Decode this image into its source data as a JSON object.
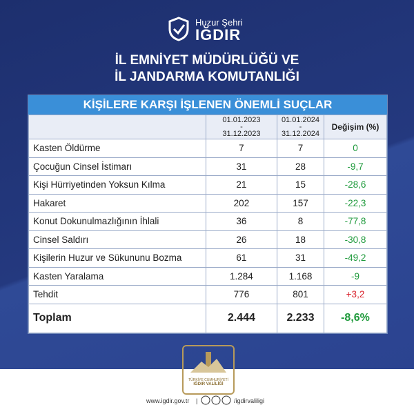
{
  "header": {
    "tagline": "Huzur Şehri",
    "city": "IĞDIR",
    "title_lines": [
      "İL EMNİYET MÜDÜRLÜĞÜ VE",
      "İL JANDARMA KOMUTANLIĞI"
    ]
  },
  "table": {
    "title": "KİŞİLERE KARŞI İŞLENEN ÖNEMLİ SUÇLAR",
    "columns": [
      "",
      "01.01.2023\n-\n31.12.2023",
      "01.01.2024\n-\n31.12.2024",
      "Değişim (%)"
    ],
    "rows": [
      [
        "Kasten Öldürme",
        "7",
        "7",
        "0"
      ],
      [
        "Çocuğun Cinsel İstimarı",
        "31",
        "28",
        "-9,7"
      ],
      [
        "Kişi Hürriyetinden Yoksun Kılma",
        "21",
        "15",
        "-28,6"
      ],
      [
        "Hakaret",
        "202",
        "157",
        "-22,3"
      ],
      [
        "Konut Dokunulmazlığının İhlali",
        "36",
        "8",
        "-77,8"
      ],
      [
        "Cinsel Saldırı",
        "26",
        "18",
        "-30,8"
      ],
      [
        "Kişilerin Huzur ve Sükununu Bozma",
        "61",
        "31",
        "-49,2"
      ],
      [
        "Kasten Yaralama",
        "1.284",
        "1.168",
        "-9"
      ],
      [
        "Tehdit",
        "776",
        "801",
        "+3,2"
      ]
    ],
    "total": [
      "Toplam",
      "2.444",
      "2.233",
      "-8,6%"
    ]
  },
  "emblem": {
    "line1": "TÜRKİYE CUMHURİYETİ",
    "line2": "IĞDIR VALİLİĞİ"
  },
  "footer": {
    "website": "www.igdir.gov.tr",
    "separator": "|",
    "handle": "/igdirvaliligi"
  }
}
